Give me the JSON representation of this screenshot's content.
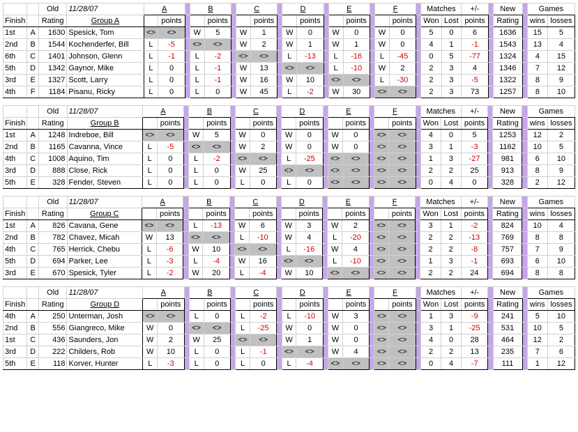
{
  "date": "11/28/07",
  "headers": {
    "old": "Old",
    "finish": "Finish",
    "rating": "Rating",
    "points": "points",
    "matches": "Matches",
    "won": "Won",
    "lost": "Lost",
    "pm": "+/-",
    "new": "New",
    "newRating": "Rating",
    "games": "Games",
    "wins": "wins",
    "losses": "losses",
    "letters": [
      "A",
      "B",
      "C",
      "D",
      "E",
      "F"
    ]
  },
  "groups": [
    {
      "name": "Group A",
      "cols": 6,
      "rows": [
        {
          "finish": "1st",
          "l": "A",
          "rating": 1630,
          "name": "Spesick, Tom",
          "cells": [
            [
              "<>",
              "<>"
            ],
            [
              "W",
              "5"
            ],
            [
              "W",
              "1"
            ],
            [
              "W",
              "0"
            ],
            [
              "W",
              "0"
            ],
            [
              "W",
              "0"
            ]
          ],
          "won": 5,
          "lost": 0,
          "pm": 6,
          "new": 1636,
          "wins": 15,
          "losses": 5
        },
        {
          "finish": "2nd",
          "l": "B",
          "rating": 1544,
          "name": "Kochenderfer, Bill",
          "cells": [
            [
              "L",
              "-5"
            ],
            [
              "<>",
              "<>"
            ],
            [
              "W",
              "2"
            ],
            [
              "W",
              "1"
            ],
            [
              "W",
              "1"
            ],
            [
              "W",
              "0"
            ]
          ],
          "won": 4,
          "lost": 1,
          "pm": -1,
          "new": 1543,
          "wins": 13,
          "losses": 4
        },
        {
          "finish": "6th",
          "l": "C",
          "rating": 1401,
          "name": "Johnson, Glenn",
          "cells": [
            [
              "L",
              "-1"
            ],
            [
              "L",
              "-2"
            ],
            [
              "<>",
              "<>"
            ],
            [
              "L",
              "-13"
            ],
            [
              "L",
              "-16"
            ],
            [
              "L",
              "-45"
            ]
          ],
          "won": 0,
          "lost": 5,
          "pm": -77,
          "new": 1324,
          "wins": 4,
          "losses": 15
        },
        {
          "finish": "5th",
          "l": "D",
          "rating": 1342,
          "name": "Gaynor, Mike",
          "cells": [
            [
              "L",
              "0"
            ],
            [
              "L",
              "-1"
            ],
            [
              "W",
              "13"
            ],
            [
              "<>",
              "<>"
            ],
            [
              "L",
              "-10"
            ],
            [
              "W",
              "2"
            ]
          ],
          "won": 2,
          "lost": 3,
          "pm": 4,
          "new": 1346,
          "wins": 7,
          "losses": 12
        },
        {
          "finish": "3rd",
          "l": "E",
          "rating": 1327,
          "name": "Scott, Larry",
          "cells": [
            [
              "L",
              "0"
            ],
            [
              "L",
              "-1"
            ],
            [
              "W",
              "16"
            ],
            [
              "W",
              "10"
            ],
            [
              "<>",
              "<>"
            ],
            [
              "L",
              "-30"
            ]
          ],
          "won": 2,
          "lost": 3,
          "pm": -5,
          "new": 1322,
          "wins": 8,
          "losses": 9
        },
        {
          "finish": "4th",
          "l": "F",
          "rating": 1184,
          "name": "Pisanu, Ricky",
          "cells": [
            [
              "L",
              "0"
            ],
            [
              "L",
              "0"
            ],
            [
              "W",
              "45"
            ],
            [
              "L",
              "-2"
            ],
            [
              "W",
              "30"
            ],
            [
              "<>",
              "<>"
            ]
          ],
          "won": 2,
          "lost": 3,
          "pm": 73,
          "new": 1257,
          "wins": 8,
          "losses": 10
        }
      ]
    },
    {
      "name": "Group B",
      "cols": 6,
      "rows": [
        {
          "finish": "1st",
          "l": "A",
          "rating": 1248,
          "name": "Indreboe, Bill",
          "cells": [
            [
              "<>",
              "<>"
            ],
            [
              "W",
              "5"
            ],
            [
              "W",
              "0"
            ],
            [
              "W",
              "0"
            ],
            [
              "W",
              "0"
            ],
            [
              "<>",
              "<>"
            ]
          ],
          "won": 4,
          "lost": 0,
          "pm": 5,
          "new": 1253,
          "wins": 12,
          "losses": 2
        },
        {
          "finish": "2nd",
          "l": "B",
          "rating": 1165,
          "name": "Cavanna, Vince",
          "cells": [
            [
              "L",
              "-5"
            ],
            [
              "<>",
              "<>"
            ],
            [
              "W",
              "2"
            ],
            [
              "W",
              "0"
            ],
            [
              "W",
              "0"
            ],
            [
              "<>",
              "<>"
            ]
          ],
          "won": 3,
          "lost": 1,
          "pm": -3,
          "new": 1162,
          "wins": 10,
          "losses": 5
        },
        {
          "finish": "4th",
          "l": "C",
          "rating": 1008,
          "name": "Aquino, Tim",
          "cells": [
            [
              "L",
              "0"
            ],
            [
              "L",
              "-2"
            ],
            [
              "<>",
              "<>"
            ],
            [
              "L",
              "-25"
            ],
            [
              "<>",
              "<>"
            ],
            [
              "<>",
              "<>"
            ]
          ],
          "won": 1,
          "lost": 3,
          "pm": -27,
          "new": 981,
          "wins": 6,
          "losses": 10
        },
        {
          "finish": "3rd",
          "l": "D",
          "rating": 888,
          "name": "Close, Rick",
          "cells": [
            [
              "L",
              "0"
            ],
            [
              "L",
              "0"
            ],
            [
              "W",
              "25"
            ],
            [
              "<>",
              "<>"
            ],
            [
              "<>",
              "<>"
            ],
            [
              "<>",
              "<>"
            ]
          ],
          "won": 2,
          "lost": 2,
          "pm": 25,
          "new": 913,
          "wins": 8,
          "losses": 9
        },
        {
          "finish": "5th",
          "l": "E",
          "rating": 328,
          "name": "Fender, Steven",
          "cells": [
            [
              "L",
              "0"
            ],
            [
              "L",
              "0"
            ],
            [
              "L",
              "0"
            ],
            [
              "L",
              "0"
            ],
            [
              "<>",
              "<>"
            ],
            [
              "<>",
              "<>"
            ]
          ],
          "won": 0,
          "lost": 4,
          "pm": 0,
          "new": 328,
          "wins": 2,
          "losses": 12
        }
      ]
    },
    {
      "name": "Group C",
      "cols": 6,
      "rows": [
        {
          "finish": "1st",
          "l": "A",
          "rating": 826,
          "name": "Cavana, Gene",
          "cells": [
            [
              "<>",
              "<>"
            ],
            [
              "L",
              "-13"
            ],
            [
              "W",
              "6"
            ],
            [
              "W",
              "3"
            ],
            [
              "W",
              "2"
            ],
            [
              "<>",
              "<>"
            ]
          ],
          "won": 3,
          "lost": 1,
          "pm": -2,
          "new": 824,
          "wins": 10,
          "losses": 4
        },
        {
          "finish": "2nd",
          "l": "B",
          "rating": 782,
          "name": "Chavez, Micah",
          "cells": [
            [
              "W",
              "13"
            ],
            [
              "<>",
              "<>"
            ],
            [
              "L",
              "-10"
            ],
            [
              "W",
              "4"
            ],
            [
              "L",
              "-20"
            ],
            [
              "<>",
              "<>"
            ]
          ],
          "won": 2,
          "lost": 2,
          "pm": -13,
          "new": 769,
          "wins": 8,
          "losses": 8
        },
        {
          "finish": "4th",
          "l": "C",
          "rating": 765,
          "name": "Herrick, Chebu",
          "cells": [
            [
              "L",
              "-6"
            ],
            [
              "W",
              "10"
            ],
            [
              "<>",
              "<>"
            ],
            [
              "L",
              "-16"
            ],
            [
              "W",
              "4"
            ],
            [
              "<>",
              "<>"
            ]
          ],
          "won": 2,
          "lost": 2,
          "pm": -8,
          "new": 757,
          "wins": 7,
          "losses": 9
        },
        {
          "finish": "5th",
          "l": "D",
          "rating": 694,
          "name": "Parker, Lee",
          "cells": [
            [
              "L",
              "-3"
            ],
            [
              "L",
              "-4"
            ],
            [
              "W",
              "16"
            ],
            [
              "<>",
              "<>"
            ],
            [
              "L",
              "-10"
            ],
            [
              "<>",
              "<>"
            ]
          ],
          "won": 1,
          "lost": 3,
          "pm": -1,
          "new": 693,
          "wins": 6,
          "losses": 10
        },
        {
          "finish": "3rd",
          "l": "E",
          "rating": 670,
          "name": "Spesick, Tyler",
          "cells": [
            [
              "L",
              "-2"
            ],
            [
              "W",
              "20"
            ],
            [
              "L",
              "-4"
            ],
            [
              "W",
              "10"
            ],
            [
              "<>",
              "<>"
            ],
            [
              "<>",
              "<>"
            ]
          ],
          "won": 2,
          "lost": 2,
          "pm": 24,
          "new": 694,
          "wins": 8,
          "losses": 8
        }
      ]
    },
    {
      "name": "Group D",
      "cols": 6,
      "rows": [
        {
          "finish": "4th",
          "l": "A",
          "rating": 250,
          "name": "Unterman, Josh",
          "cells": [
            [
              "<>",
              "<>"
            ],
            [
              "L",
              "0"
            ],
            [
              "L",
              "-2"
            ],
            [
              "L",
              "-10"
            ],
            [
              "W",
              "3"
            ],
            [
              "<>",
              "<>"
            ]
          ],
          "won": 1,
          "lost": 3,
          "pm": -9,
          "new": 241,
          "wins": 5,
          "losses": 10
        },
        {
          "finish": "2nd",
          "l": "B",
          "rating": 556,
          "name": "Giangreco, Mike",
          "cells": [
            [
              "W",
              "0"
            ],
            [
              "<>",
              "<>"
            ],
            [
              "L",
              "-25"
            ],
            [
              "W",
              "0"
            ],
            [
              "W",
              "0"
            ],
            [
              "<>",
              "<>"
            ]
          ],
          "won": 3,
          "lost": 1,
          "pm": -25,
          "new": 531,
          "wins": 10,
          "losses": 5
        },
        {
          "finish": "1st",
          "l": "C",
          "rating": 436,
          "name": "Saunders, Jon",
          "cells": [
            [
              "W",
              "2"
            ],
            [
              "W",
              "25"
            ],
            [
              "<>",
              "<>"
            ],
            [
              "W",
              "1"
            ],
            [
              "W",
              "0"
            ],
            [
              "<>",
              "<>"
            ]
          ],
          "won": 4,
          "lost": 0,
          "pm": 28,
          "new": 464,
          "wins": 12,
          "losses": 2
        },
        {
          "finish": "3rd",
          "l": "D",
          "rating": 222,
          "name": "Childers, Rob",
          "cells": [
            [
              "W",
              "10"
            ],
            [
              "L",
              "0"
            ],
            [
              "L",
              "-1"
            ],
            [
              "<>",
              "<>"
            ],
            [
              "W",
              "4"
            ],
            [
              "<>",
              "<>"
            ]
          ],
          "won": 2,
          "lost": 2,
          "pm": 13,
          "new": 235,
          "wins": 7,
          "losses": 6
        },
        {
          "finish": "5th",
          "l": "E",
          "rating": 118,
          "name": "Korver, Hunter",
          "cells": [
            [
              "L",
              "-3"
            ],
            [
              "L",
              "0"
            ],
            [
              "L",
              "0"
            ],
            [
              "L",
              "-4"
            ],
            [
              "<>",
              "<>"
            ],
            [
              "<>",
              "<>"
            ]
          ],
          "won": 0,
          "lost": 4,
          "pm": -7,
          "new": 111,
          "wins": 1,
          "losses": 12
        }
      ]
    }
  ]
}
